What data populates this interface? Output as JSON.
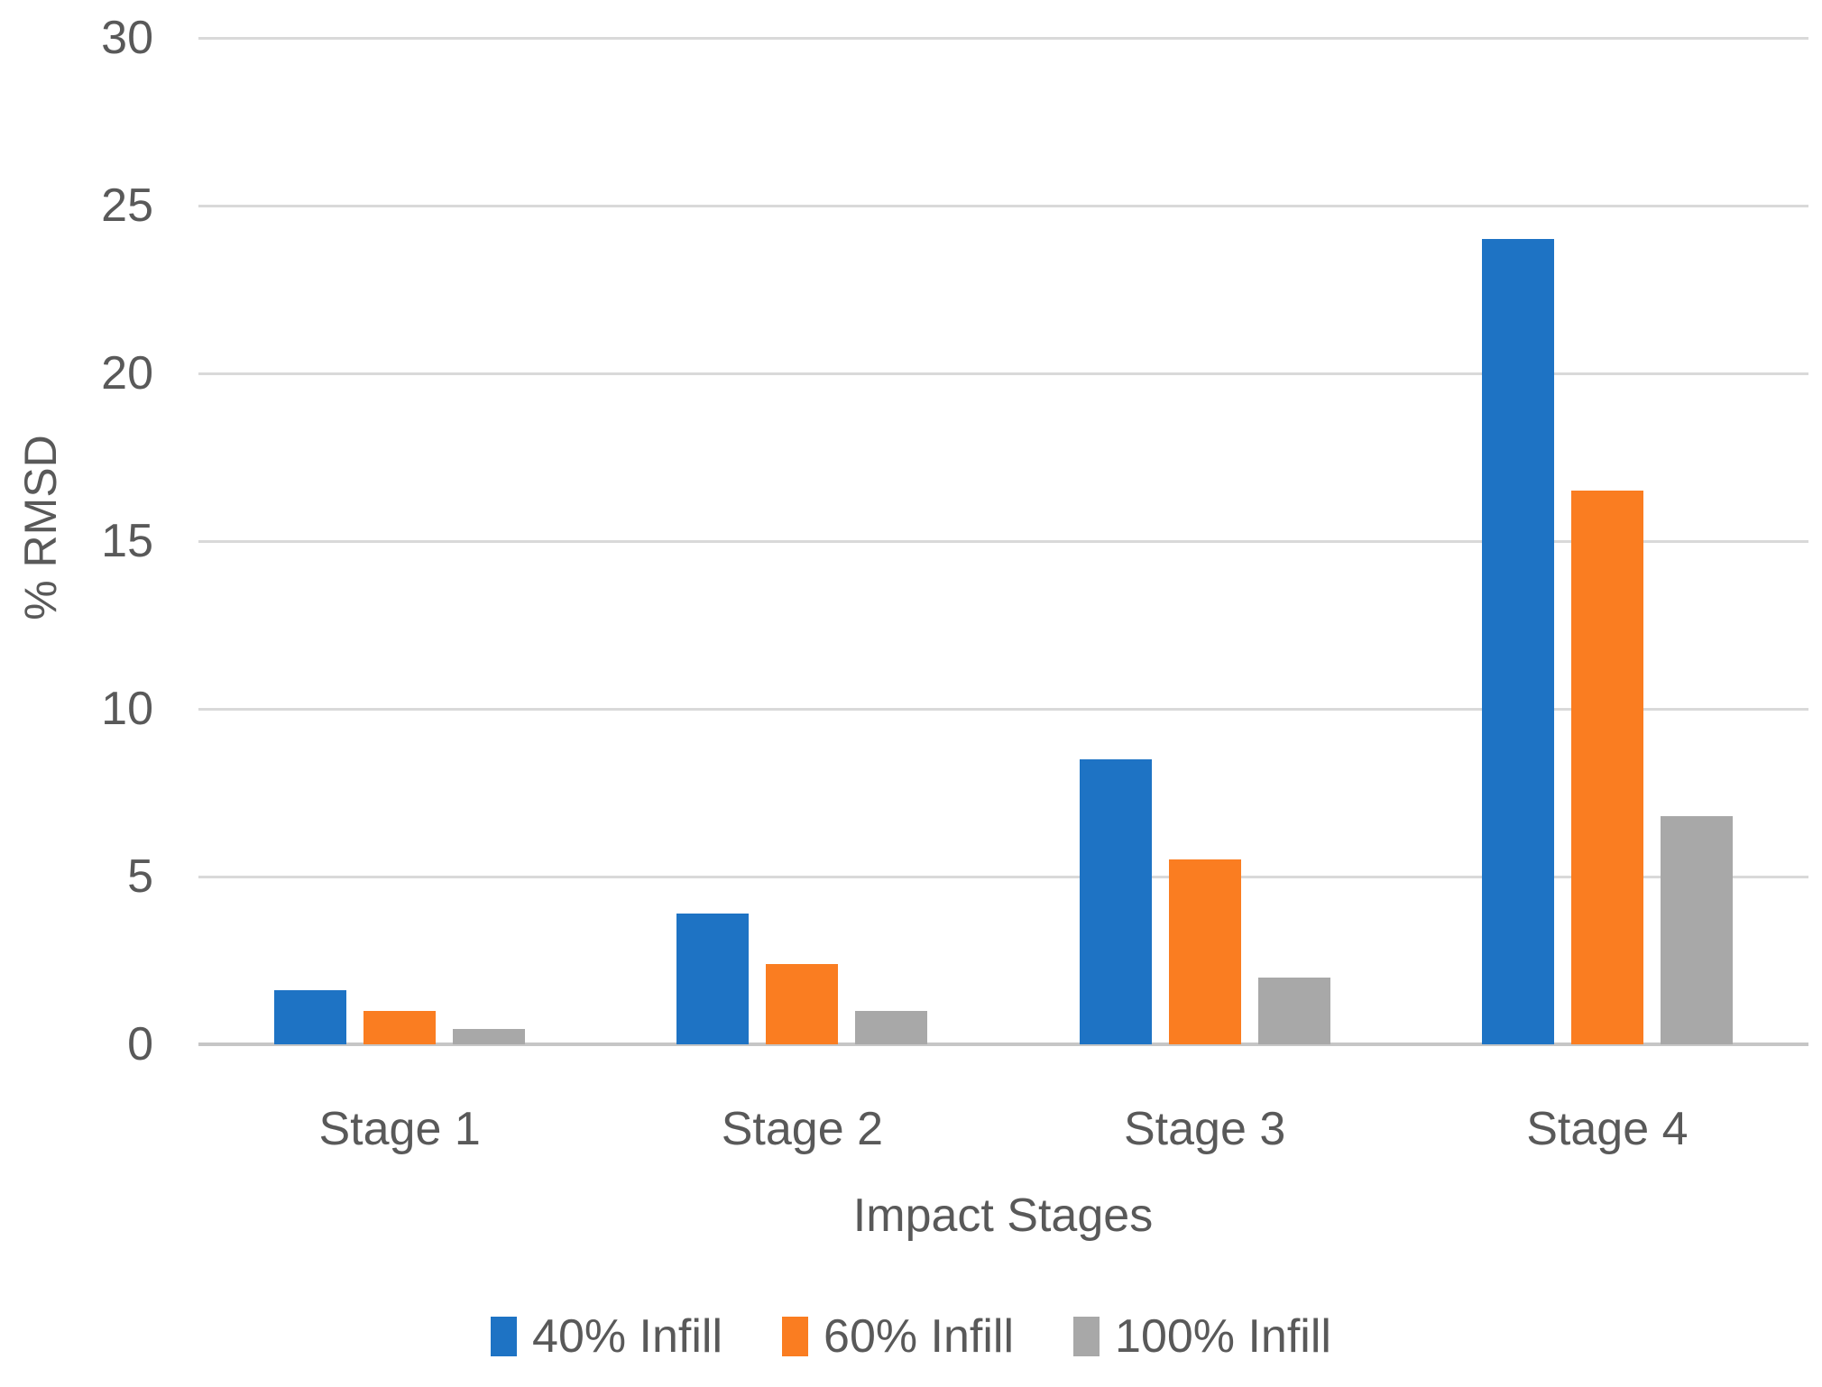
{
  "chart_data": {
    "type": "bar",
    "title": "",
    "xlabel": "Impact Stages",
    "ylabel": "% RMSD",
    "categories": [
      "Stage 1",
      "Stage 2",
      "Stage 3",
      "Stage 4"
    ],
    "series": [
      {
        "name": "40% Infill",
        "color": "#1E73C4",
        "values": [
          1.6,
          3.9,
          8.5,
          24
        ]
      },
      {
        "name": "60% Infill",
        "color": "#FA7D21",
        "values": [
          1.0,
          2.4,
          5.5,
          16.5
        ]
      },
      {
        "name": "100% Infill",
        "color": "#A8A8A8",
        "values": [
          0.45,
          1.0,
          2.0,
          6.8
        ]
      }
    ],
    "ylim": [
      0,
      30
    ],
    "yticks": [
      0,
      5,
      10,
      15,
      20,
      25,
      30
    ],
    "grid": true,
    "legend_position": "bottom"
  },
  "colors": {
    "gridline": "#D9D9D9",
    "axis_line": "#C6C6C6",
    "text": "#595959",
    "background": "#FFFFFF"
  }
}
